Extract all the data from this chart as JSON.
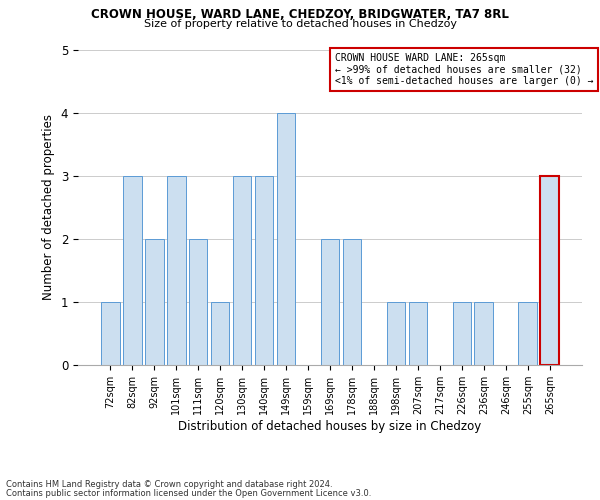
{
  "title": "CROWN HOUSE, WARD LANE, CHEDZOY, BRIDGWATER, TA7 8RL",
  "subtitle": "Size of property relative to detached houses in Chedzoy",
  "xlabel": "Distribution of detached houses by size in Chedzoy",
  "ylabel": "Number of detached properties",
  "categories": [
    "72sqm",
    "82sqm",
    "92sqm",
    "101sqm",
    "111sqm",
    "120sqm",
    "130sqm",
    "140sqm",
    "149sqm",
    "159sqm",
    "169sqm",
    "178sqm",
    "188sqm",
    "198sqm",
    "207sqm",
    "217sqm",
    "226sqm",
    "236sqm",
    "246sqm",
    "255sqm",
    "265sqm"
  ],
  "values": [
    1,
    3,
    2,
    3,
    2,
    1,
    3,
    3,
    4,
    0,
    2,
    2,
    0,
    1,
    1,
    0,
    1,
    1,
    0,
    1,
    3
  ],
  "bar_color": "#ccdff0",
  "bar_edge_color": "#5b9bd5",
  "highlight_index": 20,
  "highlight_box_color": "#cc0000",
  "annotation_title": "CROWN HOUSE WARD LANE: 265sqm",
  "annotation_line1": "← >99% of detached houses are smaller (32)",
  "annotation_line2": "<1% of semi-detached houses are larger (0) →",
  "ylim": [
    0,
    5
  ],
  "yticks": [
    0,
    1,
    2,
    3,
    4,
    5
  ],
  "footer1": "Contains HM Land Registry data © Crown copyright and database right 2024.",
  "footer2": "Contains public sector information licensed under the Open Government Licence v3.0.",
  "bg_color": "#ffffff",
  "grid_color": "#cccccc"
}
